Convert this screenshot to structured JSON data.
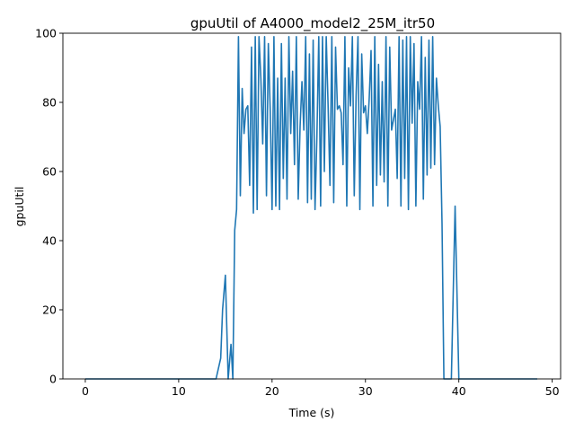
{
  "chart_data": {
    "type": "line",
    "title": "gpuUtil of A4000_model2_25M_itr50",
    "xlabel": "Time (s)",
    "ylabel": "gpuUtil",
    "xlim": [
      -2.4,
      50.9
    ],
    "ylim": [
      0,
      100
    ],
    "xticks": [
      0,
      10,
      20,
      30,
      40,
      50
    ],
    "yticks": [
      0,
      20,
      40,
      60,
      80,
      100
    ],
    "grid": false,
    "legend": "none",
    "colors": {
      "line": "#1f77b4"
    },
    "series": [
      {
        "values_x": [
          0,
          2,
          4,
          6,
          8,
          10,
          12,
          14,
          14.5,
          14.7,
          15.0,
          15.3,
          15.6,
          15.8,
          16.0,
          16.2,
          16.4,
          16.6,
          16.8,
          17.0,
          17.2,
          17.4,
          17.6,
          17.8,
          18.0,
          18.2,
          18.4,
          18.6,
          18.8,
          19.0,
          19.2,
          19.4,
          19.6,
          19.8,
          20.0,
          20.2,
          20.4,
          20.6,
          20.8,
          21.0,
          21.2,
          21.4,
          21.6,
          21.8,
          22.0,
          22.2,
          22.4,
          22.6,
          22.8,
          23.0,
          23.2,
          23.4,
          23.6,
          23.8,
          24.0,
          24.2,
          24.4,
          24.6,
          24.8,
          25.0,
          25.2,
          25.4,
          25.6,
          25.8,
          26.0,
          26.2,
          26.4,
          26.6,
          26.8,
          27.0,
          27.2,
          27.4,
          27.6,
          27.8,
          28.0,
          28.2,
          28.4,
          28.6,
          28.8,
          29.0,
          29.2,
          29.4,
          29.6,
          29.8,
          30.0,
          30.2,
          30.4,
          30.6,
          30.8,
          31.0,
          31.2,
          31.4,
          31.6,
          31.8,
          32.0,
          32.2,
          32.4,
          32.6,
          32.8,
          33.0,
          33.2,
          33.4,
          33.6,
          33.8,
          34.0,
          34.2,
          34.4,
          34.6,
          34.8,
          35.0,
          35.2,
          35.4,
          35.6,
          35.8,
          36.0,
          36.2,
          36.4,
          36.6,
          36.8,
          37.0,
          37.2,
          37.4,
          37.6,
          37.8,
          38.0,
          38.2,
          38.4,
          38.8,
          39.2,
          39.6,
          40.0,
          40.4,
          42,
          44,
          46,
          48.4
        ],
        "values_y": [
          0,
          0,
          0,
          0,
          0,
          0,
          0,
          0,
          6,
          20,
          30,
          0,
          10,
          0,
          43,
          49,
          99,
          53,
          84,
          71,
          78,
          79,
          56,
          96,
          48,
          99,
          49,
          99,
          87,
          68,
          99,
          53,
          97,
          78,
          49,
          99,
          50,
          87,
          49,
          97,
          58,
          87,
          52,
          99,
          71,
          89,
          62,
          99,
          52,
          73,
          86,
          72,
          99,
          51,
          94,
          52,
          98,
          49,
          70,
          99,
          50,
          99,
          60,
          99,
          79,
          56,
          99,
          51,
          96,
          78,
          79,
          77,
          62,
          99,
          50,
          90,
          79,
          99,
          53,
          82,
          99,
          49,
          94,
          77,
          79,
          71,
          81,
          95,
          50,
          99,
          56,
          91,
          59,
          86,
          57,
          99,
          50,
          96,
          72,
          75,
          78,
          58,
          99,
          50,
          98,
          58,
          99,
          49,
          99,
          74,
          97,
          50,
          86,
          78,
          99,
          52,
          93,
          59,
          98,
          61,
          99,
          62,
          87,
          79,
          73,
          45,
          0,
          0,
          0,
          50,
          0,
          0,
          0,
          0,
          0,
          0
        ]
      }
    ]
  }
}
